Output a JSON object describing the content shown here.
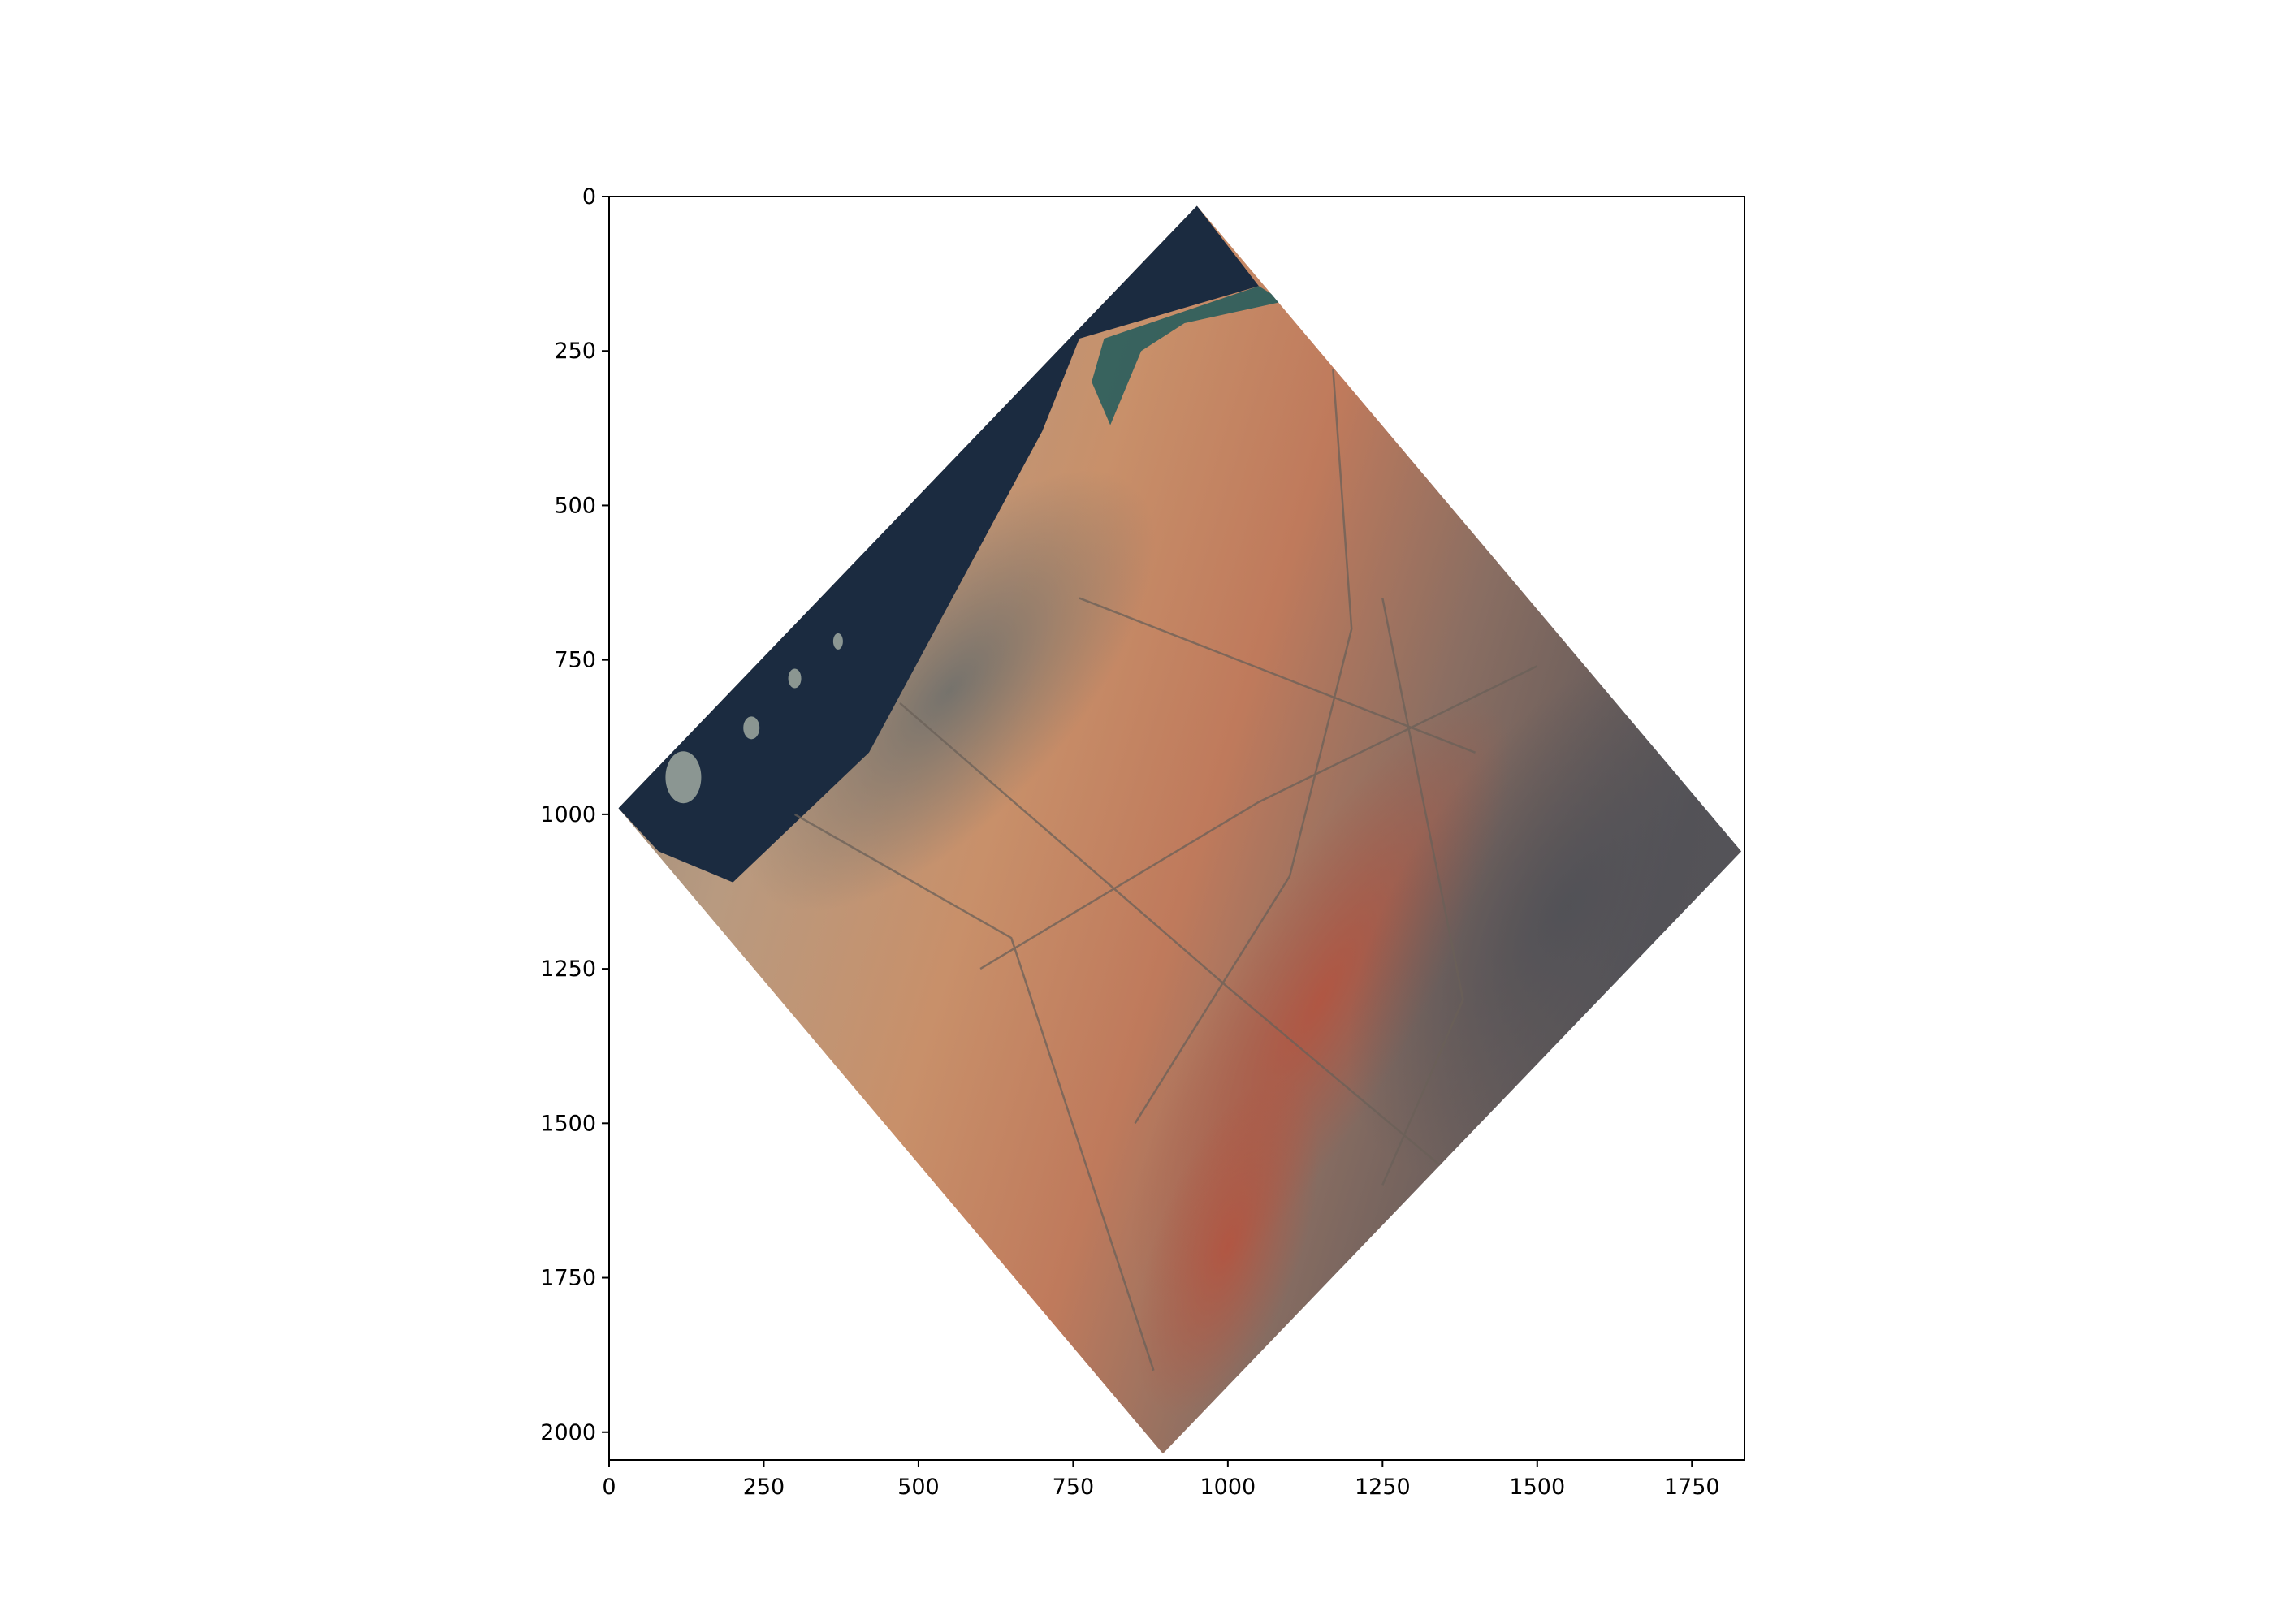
{
  "plot": {
    "type": "image",
    "xlim": [
      0,
      1835
    ],
    "ylim": [
      2045,
      0
    ],
    "xticks": [
      0,
      250,
      500,
      750,
      1000,
      1250,
      1500,
      1750
    ],
    "yticks": [
      0,
      250,
      500,
      750,
      1000,
      1250,
      1500,
      1750,
      2000
    ],
    "xtick_labels": [
      "0",
      "250",
      "500",
      "750",
      "1000",
      "1250",
      "1500",
      "1750"
    ],
    "ytick_labels": [
      "0",
      "250",
      "500",
      "750",
      "1000",
      "1250",
      "1500",
      "1750",
      "2000"
    ],
    "grid": false
  },
  "raster": {
    "description_shape": "rotated-diamond",
    "corners": {
      "top": [
        950,
        15
      ],
      "right": [
        1830,
        1060
      ],
      "bottom": [
        895,
        2035
      ],
      "left": [
        15,
        990
      ]
    },
    "colors": {
      "sea": "#1b2b40",
      "shallow_sea": "#1f5f60",
      "urban": "#7a7a74",
      "desert": "#c8916a",
      "dune_red": "#b8604a",
      "mountains": "#5c5a5c",
      "road": "#6a6058"
    }
  },
  "colors": {
    "background": "#ffffff",
    "axis": "#000000"
  }
}
